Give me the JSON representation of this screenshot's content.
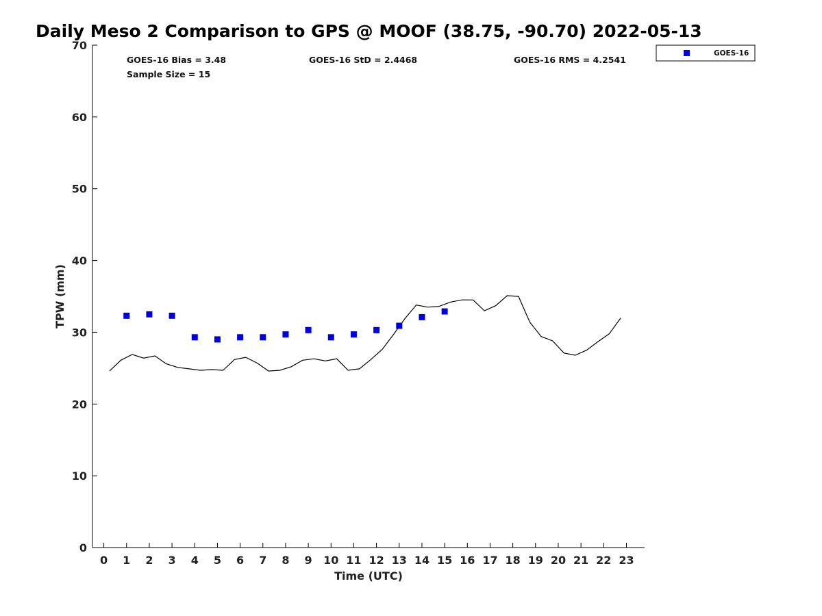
{
  "chart_data": {
    "type": "scatter",
    "title": "Daily Meso 2 Comparison to GPS @ MOOF (38.75, -90.70) 2022-05-13",
    "xlabel": "Time (UTC)",
    "ylabel": "TPW (mm)",
    "xlim": [
      -0.5,
      23.8
    ],
    "ylim": [
      0,
      70
    ],
    "x_ticks": [
      0,
      1,
      2,
      3,
      4,
      5,
      6,
      7,
      8,
      9,
      10,
      11,
      12,
      13,
      14,
      15,
      16,
      17,
      18,
      19,
      20,
      21,
      22,
      23
    ],
    "y_ticks": [
      0,
      10,
      20,
      30,
      40,
      50,
      60,
      70
    ],
    "grid": false,
    "legend_position": "top-right outside plot",
    "stats": {
      "bias": "GOES-16 Bias = 3.48",
      "std": "GOES-16 StD = 2.4468",
      "rms": "GOES-16 RMS = 4.2541",
      "sample": "Sample Size = 15"
    },
    "series": [
      {
        "name": "GOES-16",
        "marker": "square",
        "color": "#0000dd",
        "x": [
          1,
          2,
          3,
          4,
          5,
          6,
          7,
          8,
          9,
          10,
          11,
          12,
          13,
          14,
          15
        ],
        "y": [
          32.3,
          32.5,
          32.3,
          29.3,
          29.0,
          29.3,
          29.3,
          29.7,
          30.3,
          29.3,
          29.7,
          30.3,
          30.9,
          32.1,
          32.9
        ]
      },
      {
        "marker": "line",
        "color": "#000000",
        "x": [
          0.25,
          0.75,
          1.25,
          1.75,
          2.25,
          2.75,
          3.25,
          3.75,
          4.25,
          4.75,
          5.25,
          5.75,
          6.25,
          6.75,
          7.25,
          7.75,
          8.25,
          8.75,
          9.25,
          9.75,
          10.25,
          10.75,
          11.25,
          11.75,
          12.25,
          12.75,
          13.25,
          13.75,
          14.25,
          14.75,
          15.25,
          15.75,
          16.25,
          16.75,
          17.25,
          17.75,
          18.25,
          18.75,
          19.25,
          19.75,
          20.25,
          20.75,
          21.25,
          21.75,
          22.25,
          22.75
        ],
        "y": [
          24.6,
          26.1,
          26.9,
          26.4,
          26.7,
          25.6,
          25.1,
          24.9,
          24.7,
          24.8,
          24.7,
          26.2,
          26.5,
          25.7,
          24.6,
          24.7,
          25.2,
          26.1,
          26.3,
          26.0,
          26.3,
          24.7,
          24.9,
          26.2,
          27.6,
          29.7,
          31.9,
          33.8,
          33.5,
          33.6,
          34.2,
          34.5,
          34.5,
          33.0,
          33.7,
          35.1,
          35.0,
          31.4,
          29.4,
          28.8,
          27.1,
          26.8,
          27.5,
          28.7,
          29.8,
          32.0
        ]
      }
    ]
  }
}
